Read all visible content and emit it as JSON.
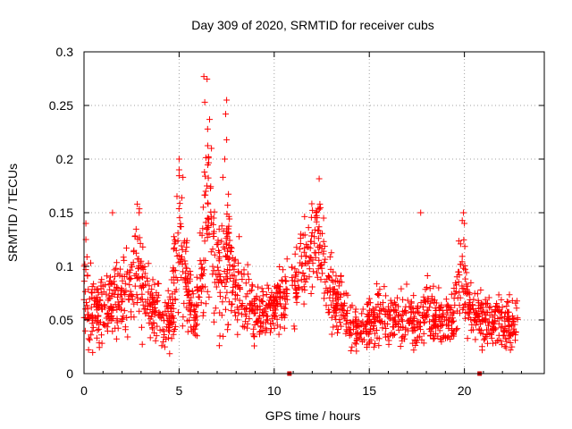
{
  "chart_data": {
    "type": "scatter",
    "title": "Day 309 of 2020, SRMTID for receiver cubs",
    "xlabel": "GPS time / hours",
    "ylabel": "SRMTID / TECUs",
    "xlim": [
      0,
      24.2
    ],
    "ylim": [
      0,
      0.3
    ],
    "xticks": [
      0,
      5,
      10,
      15,
      20
    ],
    "xtick_labels": [
      "0",
      "5",
      "10",
      "15",
      "20"
    ],
    "yticks": [
      0,
      0.05,
      0.1,
      0.15,
      0.2,
      0.25,
      0.3
    ],
    "ytick_labels": [
      "0",
      "0.05",
      "0.1",
      "0.15",
      "0.2",
      "0.25",
      "0.3"
    ],
    "grid": true,
    "marker": "plus",
    "color": "#ff0000",
    "axis_markers_x": [
      10.8,
      20.8
    ],
    "series": [
      {
        "name": "SRMTID",
        "profile_x": [
          0,
          0.15,
          0.4,
          1,
          1.5,
          2,
          2.5,
          2.8,
          3,
          3.3,
          3.8,
          4.2,
          4.6,
          4.9,
          5.1,
          5.3,
          5.5,
          5.8,
          6.1,
          6.4,
          6.6,
          6.9,
          7.2,
          7.5,
          7.8,
          8.2,
          8.6,
          9,
          9.5,
          10,
          10.5,
          11,
          11.5,
          12,
          12.4,
          12.8,
          13.2,
          13.6,
          14,
          14.5,
          15,
          15.5,
          16,
          16.5,
          17,
          17.5,
          18,
          18.5,
          19,
          19.5,
          19.9,
          20.2,
          20.6,
          21,
          21.5,
          22,
          22.4,
          22.8
        ],
        "profile_mean": [
          0.07,
          0.06,
          0.055,
          0.06,
          0.07,
          0.075,
          0.085,
          0.1,
          0.085,
          0.065,
          0.06,
          0.045,
          0.055,
          0.11,
          0.13,
          0.1,
          0.075,
          0.055,
          0.08,
          0.14,
          0.17,
          0.1,
          0.09,
          0.11,
          0.08,
          0.075,
          0.065,
          0.055,
          0.055,
          0.06,
          0.07,
          0.08,
          0.1,
          0.12,
          0.13,
          0.08,
          0.07,
          0.06,
          0.045,
          0.04,
          0.045,
          0.055,
          0.05,
          0.05,
          0.055,
          0.05,
          0.06,
          0.05,
          0.05,
          0.055,
          0.1,
          0.06,
          0.055,
          0.05,
          0.05,
          0.045,
          0.045,
          0.05
        ],
        "profile_spread": [
          0.02,
          0.03,
          0.02,
          0.02,
          0.02,
          0.02,
          0.025,
          0.03,
          0.025,
          0.02,
          0.02,
          0.015,
          0.02,
          0.04,
          0.04,
          0.03,
          0.02,
          0.015,
          0.025,
          0.06,
          0.05,
          0.03,
          0.03,
          0.04,
          0.025,
          0.02,
          0.02,
          0.015,
          0.015,
          0.015,
          0.02,
          0.02,
          0.025,
          0.025,
          0.025,
          0.02,
          0.02,
          0.015,
          0.015,
          0.012,
          0.012,
          0.015,
          0.013,
          0.013,
          0.015,
          0.015,
          0.018,
          0.013,
          0.013,
          0.015,
          0.03,
          0.015,
          0.015,
          0.014,
          0.014,
          0.014,
          0.014,
          0.015
        ],
        "sample_count": 1800,
        "peaks": [
          {
            "x": 0.1,
            "y": 0.14
          },
          {
            "x": 0.1,
            "y": 0.125
          },
          {
            "x": 1.5,
            "y": 0.15
          },
          {
            "x": 2.8,
            "y": 0.158
          },
          {
            "x": 2.9,
            "y": 0.15
          },
          {
            "x": 5.0,
            "y": 0.2
          },
          {
            "x": 5.0,
            "y": 0.19
          },
          {
            "x": 5.2,
            "y": 0.183
          },
          {
            "x": 6.3,
            "y": 0.277
          },
          {
            "x": 6.35,
            "y": 0.253
          },
          {
            "x": 6.6,
            "y": 0.237
          },
          {
            "x": 6.5,
            "y": 0.228
          },
          {
            "x": 6.7,
            "y": 0.21
          },
          {
            "x": 6.4,
            "y": 0.17
          },
          {
            "x": 7.5,
            "y": 0.255
          },
          {
            "x": 7.45,
            "y": 0.242
          },
          {
            "x": 7.5,
            "y": 0.218
          },
          {
            "x": 7.4,
            "y": 0.2
          },
          {
            "x": 7.3,
            "y": 0.183
          },
          {
            "x": 7.55,
            "y": 0.157
          },
          {
            "x": 12.4,
            "y": 0.158
          },
          {
            "x": 12.2,
            "y": 0.15
          },
          {
            "x": 12.6,
            "y": 0.145
          },
          {
            "x": 17.7,
            "y": 0.15
          },
          {
            "x": 19.95,
            "y": 0.15
          },
          {
            "x": 20.0,
            "y": 0.14
          }
        ]
      }
    ]
  }
}
